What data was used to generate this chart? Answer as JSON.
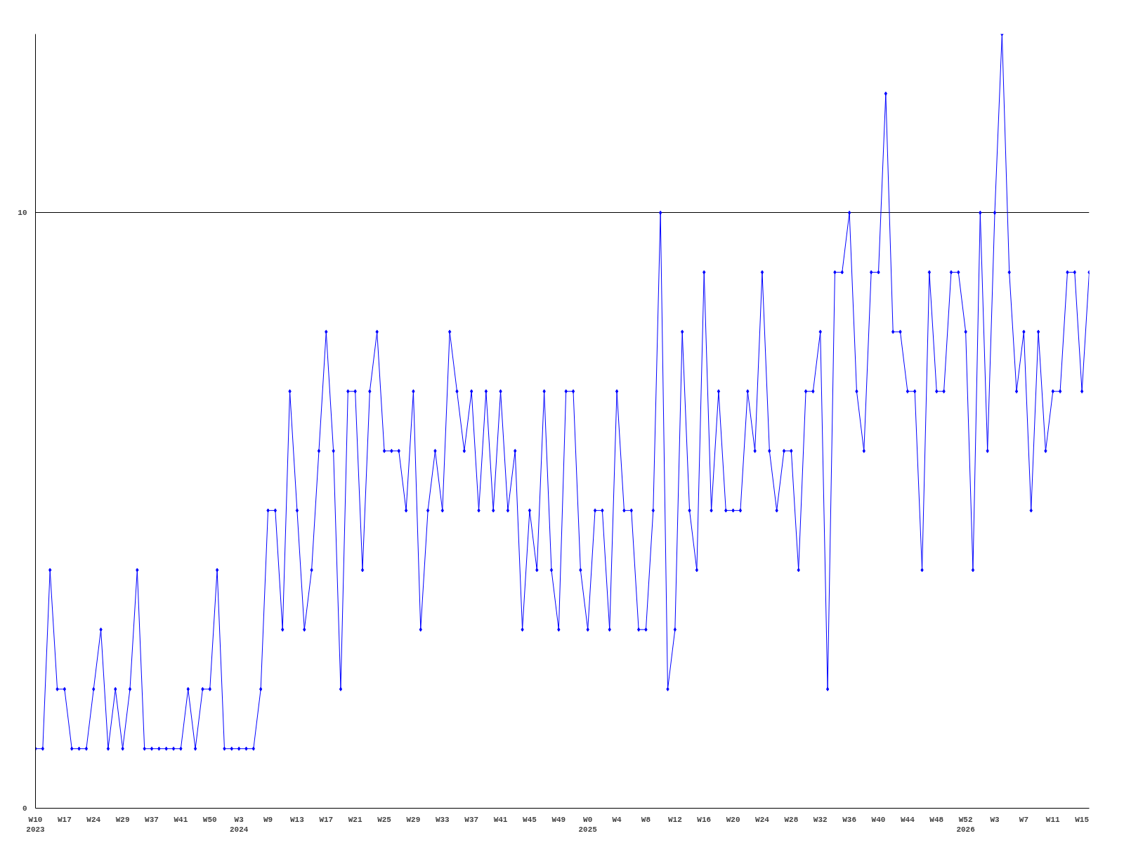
{
  "chart_data": {
    "type": "line",
    "categories": [
      "W10\n2023",
      null,
      null,
      null,
      "W17",
      null,
      null,
      null,
      "W24",
      null,
      null,
      null,
      "W29",
      null,
      null,
      null,
      "W37",
      null,
      null,
      null,
      "W41",
      null,
      null,
      null,
      "W50",
      null,
      null,
      null,
      "W3\n2024",
      null,
      null,
      null,
      "W9",
      null,
      null,
      null,
      "W13",
      null,
      null,
      null,
      "W17",
      null,
      null,
      null,
      "W21",
      null,
      null,
      null,
      "W25",
      null,
      null,
      null,
      "W29",
      null,
      null,
      null,
      "W33",
      null,
      null,
      null,
      "W37",
      null,
      null,
      null,
      "W41",
      null,
      null,
      null,
      "W45",
      null,
      null,
      null,
      "W49",
      null,
      null,
      null,
      "W0\n2025",
      null,
      null,
      null,
      "W4",
      null,
      null,
      null,
      "W8",
      null,
      null,
      null,
      "W12",
      null,
      null,
      null,
      "W16",
      null,
      null,
      null,
      "W20",
      null,
      null,
      null,
      "W24",
      null,
      null,
      null,
      "W28",
      null,
      null,
      null,
      "W32",
      null,
      null,
      null,
      "W36",
      null,
      null,
      null,
      "W40",
      null,
      null,
      null,
      "W44",
      null,
      null,
      null,
      "W48",
      null,
      null,
      null,
      "W52\n2026",
      null,
      null,
      null,
      "W3",
      null,
      null,
      null,
      "W7",
      null,
      null,
      null,
      "W11",
      null,
      null,
      null,
      "W15",
      null
    ],
    "series": [
      {
        "color": "#0000ff",
        "values": [
          1,
          1,
          4,
          2,
          2,
          1,
          1,
          1,
          2,
          3,
          1,
          2,
          1,
          2,
          4,
          1,
          1,
          1,
          1,
          1,
          1,
          2,
          1,
          2,
          2,
          4,
          1,
          1,
          1,
          1,
          1,
          2,
          5,
          5,
          3,
          7,
          5,
          3,
          4,
          6,
          8,
          6,
          2,
          7,
          7,
          4,
          7,
          8,
          6,
          6,
          6,
          5,
          7,
          3,
          5,
          6,
          5,
          8,
          7,
          6,
          7,
          5,
          7,
          5,
          7,
          5,
          6,
          3,
          5,
          4,
          7,
          4,
          3,
          7,
          7,
          4,
          3,
          5,
          5,
          3,
          7,
          5,
          5,
          3,
          3,
          5,
          10,
          2,
          3,
          8,
          5,
          4,
          9,
          5,
          7,
          5,
          5,
          5,
          7,
          6,
          9,
          6,
          5,
          6,
          6,
          4,
          7,
          7,
          8,
          2,
          9,
          9,
          10,
          7,
          6,
          9,
          9,
          12,
          8,
          8,
          7,
          7,
          4,
          9,
          7,
          7,
          9,
          9,
          8,
          4,
          10,
          6,
          10,
          13,
          9,
          7,
          8,
          5,
          8,
          6,
          7,
          7,
          9,
          9,
          7,
          9
        ]
      }
    ],
    "ylim": [
      0,
      13
    ],
    "yticks": [
      0,
      10
    ],
    "grid": "y",
    "marker": "diamond",
    "line_style": "solid"
  }
}
